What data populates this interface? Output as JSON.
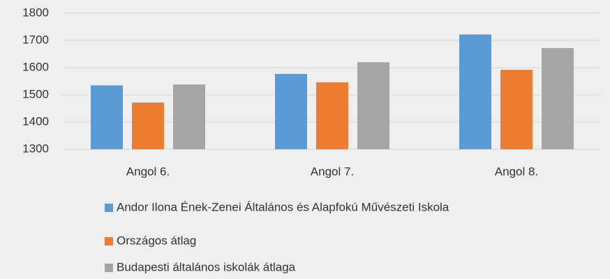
{
  "chart_data": {
    "type": "bar",
    "categories": [
      "Angol 6.",
      "Angol 7.",
      "Angol 8."
    ],
    "series": [
      {
        "name": "Andor Ilona Ének-Zenei Általános és Alapfokú Művészeti Iskola",
        "color": "#5b9bd5",
        "values": [
          1535,
          1577,
          1722
        ]
      },
      {
        "name": "Országos átlag",
        "color": "#ed7d31",
        "values": [
          1472,
          1546,
          1592
        ]
      },
      {
        "name": "Budapesti általános iskolák átlaga",
        "color": "#a5a5a5",
        "values": [
          1538,
          1620,
          1672
        ]
      }
    ],
    "ylim": [
      1300,
      1800
    ],
    "yticks": [
      1300,
      1400,
      1500,
      1600,
      1700,
      1800
    ],
    "grid": true
  }
}
